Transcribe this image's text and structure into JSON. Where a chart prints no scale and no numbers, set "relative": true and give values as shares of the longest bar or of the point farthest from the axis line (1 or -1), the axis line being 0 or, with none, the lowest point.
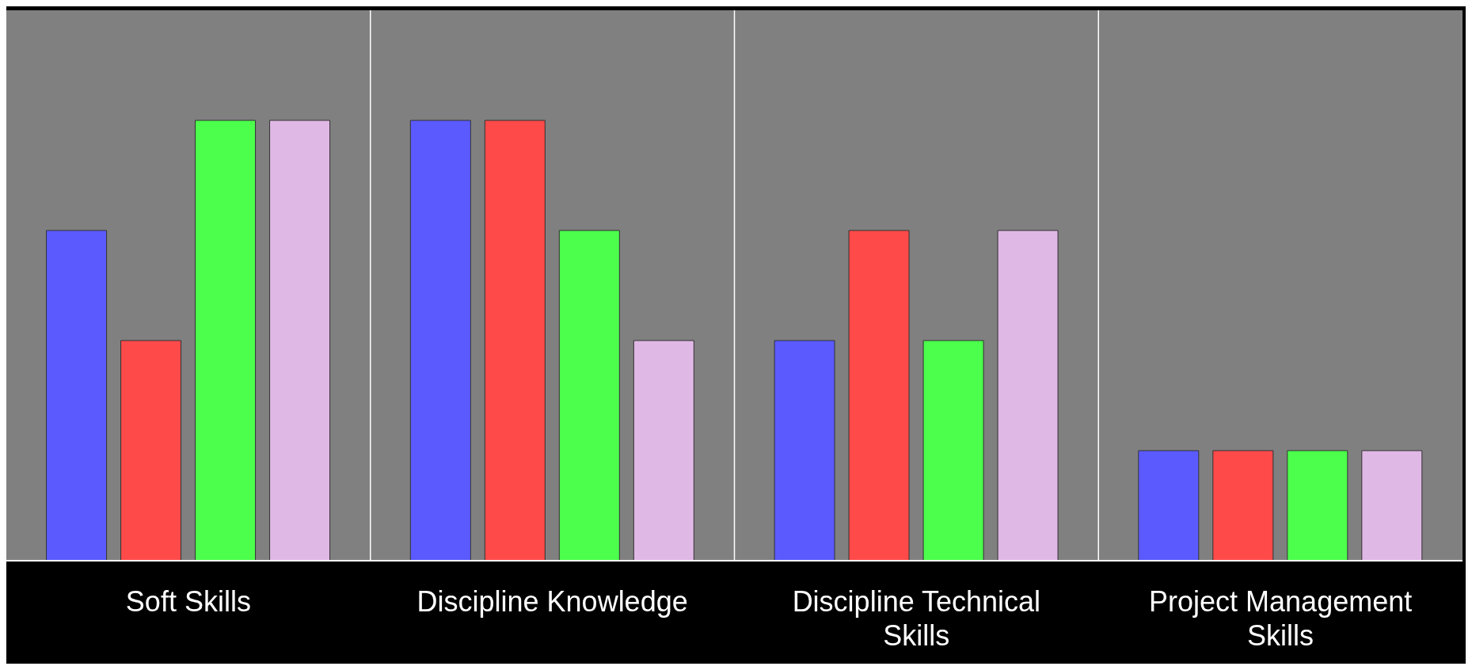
{
  "chart_data": {
    "type": "bar",
    "relative": true,
    "grid": "x",
    "categories": [
      "Soft Skills",
      "Discipline Knowledge",
      "Discipline Technical Skills",
      "Project Management Skills"
    ],
    "series": [
      {
        "color": "#5a5aff",
        "values": [
          0.75,
          1,
          0.5,
          0.25
        ]
      },
      {
        "color": "#ff4a4a",
        "values": [
          0.5,
          1,
          0.75,
          0.25
        ]
      },
      {
        "color": "#4cff4c",
        "values": [
          1,
          0.75,
          0.5,
          0.25
        ]
      },
      {
        "color": "#e0b8e6",
        "values": [
          1,
          0.5,
          0.75,
          0.25
        ]
      }
    ]
  }
}
